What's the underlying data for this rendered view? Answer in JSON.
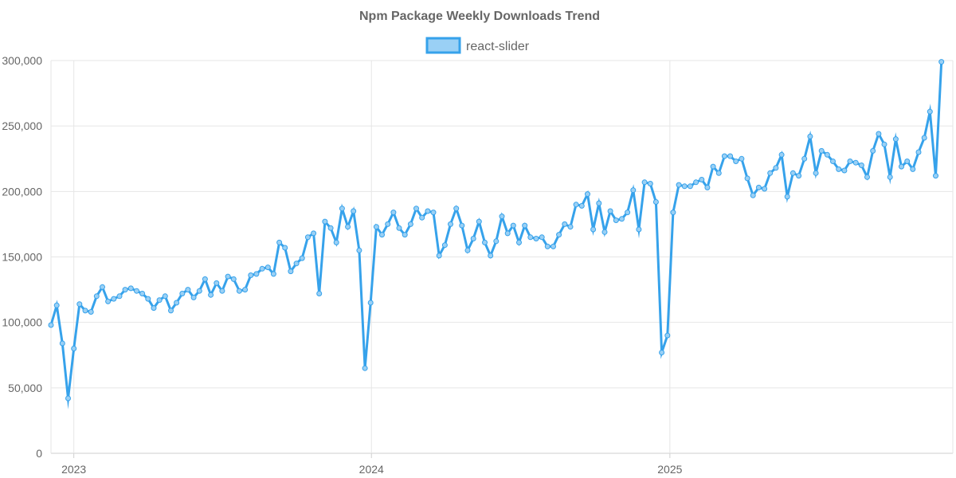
{
  "chart_data": {
    "type": "line",
    "title": "Npm Package Weekly Downloads Trend",
    "xlabel": "",
    "ylabel": "",
    "ylim": [
      0,
      300000
    ],
    "y_ticks": [
      0,
      50000,
      100000,
      150000,
      200000,
      250000,
      300000
    ],
    "y_tick_labels": [
      "0",
      "50,000",
      "100,000",
      "150,000",
      "200,000",
      "250,000",
      "300,000"
    ],
    "x_range": [
      "2022-12-04",
      "2025-12-14"
    ],
    "x_ticks": [
      "2023-01-01",
      "2024-01-01",
      "2025-01-01"
    ],
    "x_tick_labels": [
      "2023",
      "2024",
      "2025"
    ],
    "grid": true,
    "legend_position": "top-center",
    "colors": {
      "line": "#36a2eb",
      "fill": "#9ad0f5",
      "grid": "#e6e6e6"
    },
    "series": [
      {
        "name": "react-slider",
        "points": [
          [
            "2022-12-04",
            98000
          ],
          [
            "2022-12-11",
            113000
          ],
          [
            "2022-12-18",
            84000
          ],
          [
            "2022-12-25",
            42000
          ],
          [
            "2023-01-01",
            80000
          ],
          [
            "2023-01-08",
            114000
          ],
          [
            "2023-01-15",
            109000
          ],
          [
            "2023-01-22",
            108000
          ],
          [
            "2023-01-29",
            120000
          ],
          [
            "2023-02-05",
            127000
          ],
          [
            "2023-02-12",
            116000
          ],
          [
            "2023-02-19",
            118000
          ],
          [
            "2023-02-26",
            120000
          ],
          [
            "2023-03-05",
            125000
          ],
          [
            "2023-03-12",
            126000
          ],
          [
            "2023-03-19",
            124000
          ],
          [
            "2023-03-26",
            122000
          ],
          [
            "2023-04-02",
            118000
          ],
          [
            "2023-04-09",
            111000
          ],
          [
            "2023-04-16",
            117000
          ],
          [
            "2023-04-23",
            120000
          ],
          [
            "2023-04-30",
            109000
          ],
          [
            "2023-05-07",
            115000
          ],
          [
            "2023-05-14",
            122000
          ],
          [
            "2023-05-21",
            125000
          ],
          [
            "2023-05-28",
            119000
          ],
          [
            "2023-06-04",
            124000
          ],
          [
            "2023-06-11",
            133000
          ],
          [
            "2023-06-18",
            121000
          ],
          [
            "2023-06-25",
            130000
          ],
          [
            "2023-07-02",
            124000
          ],
          [
            "2023-07-09",
            135000
          ],
          [
            "2023-07-16",
            133000
          ],
          [
            "2023-07-23",
            124000
          ],
          [
            "2023-07-30",
            125000
          ],
          [
            "2023-08-06",
            136000
          ],
          [
            "2023-08-13",
            137000
          ],
          [
            "2023-08-20",
            141000
          ],
          [
            "2023-08-27",
            142000
          ],
          [
            "2023-09-03",
            137000
          ],
          [
            "2023-09-10",
            161000
          ],
          [
            "2023-09-17",
            157000
          ],
          [
            "2023-09-24",
            139000
          ],
          [
            "2023-10-01",
            145000
          ],
          [
            "2023-10-08",
            149000
          ],
          [
            "2023-10-15",
            165000
          ],
          [
            "2023-10-22",
            168000
          ],
          [
            "2023-10-29",
            122000
          ],
          [
            "2023-11-05",
            177000
          ],
          [
            "2023-11-12",
            172000
          ],
          [
            "2023-11-19",
            161000
          ],
          [
            "2023-11-26",
            187000
          ],
          [
            "2023-12-03",
            173000
          ],
          [
            "2023-12-10",
            185000
          ],
          [
            "2023-12-17",
            155000
          ],
          [
            "2023-12-24",
            65000
          ],
          [
            "2023-12-31",
            115000
          ],
          [
            "2024-01-07",
            173000
          ],
          [
            "2024-01-14",
            167000
          ],
          [
            "2024-01-21",
            175000
          ],
          [
            "2024-01-28",
            184000
          ],
          [
            "2024-02-04",
            172000
          ],
          [
            "2024-02-11",
            167000
          ],
          [
            "2024-02-18",
            175000
          ],
          [
            "2024-02-25",
            187000
          ],
          [
            "2024-03-03",
            180000
          ],
          [
            "2024-03-10",
            185000
          ],
          [
            "2024-03-17",
            184000
          ],
          [
            "2024-03-24",
            151000
          ],
          [
            "2024-03-31",
            159000
          ],
          [
            "2024-04-07",
            175000
          ],
          [
            "2024-04-14",
            187000
          ],
          [
            "2024-04-21",
            174000
          ],
          [
            "2024-04-28",
            155000
          ],
          [
            "2024-05-05",
            164000
          ],
          [
            "2024-05-12",
            177000
          ],
          [
            "2024-05-19",
            161000
          ],
          [
            "2024-05-26",
            151000
          ],
          [
            "2024-06-02",
            162000
          ],
          [
            "2024-06-09",
            181000
          ],
          [
            "2024-06-16",
            168000
          ],
          [
            "2024-06-23",
            174000
          ],
          [
            "2024-06-30",
            161000
          ],
          [
            "2024-07-07",
            174000
          ],
          [
            "2024-07-14",
            165000
          ],
          [
            "2024-07-21",
            164000
          ],
          [
            "2024-07-28",
            165000
          ],
          [
            "2024-08-04",
            158000
          ],
          [
            "2024-08-11",
            158000
          ],
          [
            "2024-08-18",
            167000
          ],
          [
            "2024-08-25",
            175000
          ],
          [
            "2024-09-01",
            173000
          ],
          [
            "2024-09-08",
            190000
          ],
          [
            "2024-09-15",
            189000
          ],
          [
            "2024-09-22",
            198000
          ],
          [
            "2024-09-29",
            171000
          ],
          [
            "2024-10-06",
            191000
          ],
          [
            "2024-10-13",
            169000
          ],
          [
            "2024-10-20",
            185000
          ],
          [
            "2024-10-27",
            178000
          ],
          [
            "2024-11-03",
            179000
          ],
          [
            "2024-11-10",
            184000
          ],
          [
            "2024-11-17",
            201000
          ],
          [
            "2024-11-24",
            171000
          ],
          [
            "2024-12-01",
            207000
          ],
          [
            "2024-12-08",
            206000
          ],
          [
            "2024-12-15",
            192000
          ],
          [
            "2024-12-22",
            77000
          ],
          [
            "2024-12-29",
            90000
          ],
          [
            "2025-01-05",
            184000
          ],
          [
            "2025-01-12",
            205000
          ],
          [
            "2025-01-19",
            204000
          ],
          [
            "2025-01-26",
            204000
          ],
          [
            "2025-02-02",
            207000
          ],
          [
            "2025-02-09",
            209000
          ],
          [
            "2025-02-16",
            203000
          ],
          [
            "2025-02-23",
            219000
          ],
          [
            "2025-03-02",
            214000
          ],
          [
            "2025-03-09",
            227000
          ],
          [
            "2025-03-16",
            227000
          ],
          [
            "2025-03-23",
            223000
          ],
          [
            "2025-03-30",
            225000
          ],
          [
            "2025-04-06",
            210000
          ],
          [
            "2025-04-13",
            197000
          ],
          [
            "2025-04-20",
            203000
          ],
          [
            "2025-04-27",
            202000
          ],
          [
            "2025-05-04",
            214000
          ],
          [
            "2025-05-11",
            218000
          ],
          [
            "2025-05-18",
            228000
          ],
          [
            "2025-05-25",
            196000
          ],
          [
            "2025-06-01",
            214000
          ],
          [
            "2025-06-08",
            212000
          ],
          [
            "2025-06-15",
            225000
          ],
          [
            "2025-06-22",
            242000
          ],
          [
            "2025-06-29",
            214000
          ],
          [
            "2025-07-06",
            231000
          ],
          [
            "2025-07-13",
            228000
          ],
          [
            "2025-07-20",
            223000
          ],
          [
            "2025-07-27",
            217000
          ],
          [
            "2025-08-03",
            216000
          ],
          [
            "2025-08-10",
            223000
          ],
          [
            "2025-08-17",
            222000
          ],
          [
            "2025-08-24",
            220000
          ],
          [
            "2025-08-31",
            211000
          ],
          [
            "2025-09-07",
            231000
          ],
          [
            "2025-09-14",
            244000
          ],
          [
            "2025-09-21",
            236000
          ],
          [
            "2025-09-28",
            211000
          ],
          [
            "2025-10-05",
            240000
          ],
          [
            "2025-10-12",
            219000
          ],
          [
            "2025-10-19",
            223000
          ],
          [
            "2025-10-26",
            217000
          ],
          [
            "2025-11-02",
            230000
          ],
          [
            "2025-11-09",
            241000
          ],
          [
            "2025-11-16",
            261000
          ],
          [
            "2025-11-23",
            212000
          ],
          [
            "2025-11-30",
            299000
          ]
        ]
      }
    ]
  }
}
